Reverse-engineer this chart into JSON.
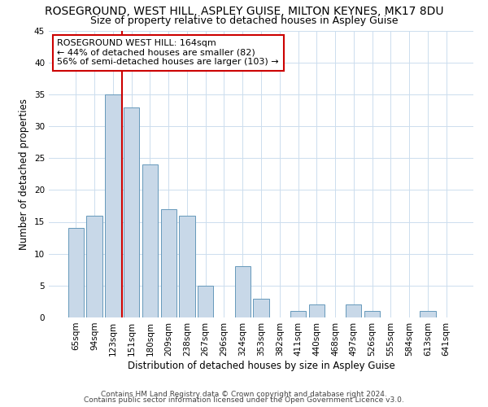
{
  "title": "ROSEGROUND, WEST HILL, ASPLEY GUISE, MILTON KEYNES, MK17 8DU",
  "subtitle": "Size of property relative to detached houses in Aspley Guise",
  "xlabel": "Distribution of detached houses by size in Aspley Guise",
  "ylabel": "Number of detached properties",
  "bin_labels": [
    "65sqm",
    "94sqm",
    "123sqm",
    "151sqm",
    "180sqm",
    "209sqm",
    "238sqm",
    "267sqm",
    "296sqm",
    "324sqm",
    "353sqm",
    "382sqm",
    "411sqm",
    "440sqm",
    "468sqm",
    "497sqm",
    "526sqm",
    "555sqm",
    "584sqm",
    "613sqm",
    "641sqm"
  ],
  "bar_heights": [
    14,
    16,
    35,
    33,
    24,
    17,
    16,
    5,
    0,
    8,
    3,
    0,
    1,
    2,
    0,
    2,
    1,
    0,
    0,
    1,
    0
  ],
  "bar_color": "#c8d8e8",
  "bar_edge_color": "#6699bb",
  "vline_x": 3.0,
  "vline_color": "#cc0000",
  "annotation_text": "ROSEGROUND WEST HILL: 164sqm\n← 44% of detached houses are smaller (82)\n56% of semi-detached houses are larger (103) →",
  "annotation_box_color": "#ffffff",
  "annotation_box_edge": "#cc0000",
  "ylim": [
    0,
    45
  ],
  "yticks": [
    0,
    5,
    10,
    15,
    20,
    25,
    30,
    35,
    40,
    45
  ],
  "footer1": "Contains HM Land Registry data © Crown copyright and database right 2024.",
  "footer2": "Contains public sector information licensed under the Open Government Licence v3.0.",
  "background_color": "#ffffff",
  "grid_color": "#ccddee",
  "title_fontsize": 10,
  "subtitle_fontsize": 9,
  "axis_label_fontsize": 8.5,
  "tick_fontsize": 7.5,
  "annotation_fontsize": 8,
  "footer_fontsize": 6.5
}
